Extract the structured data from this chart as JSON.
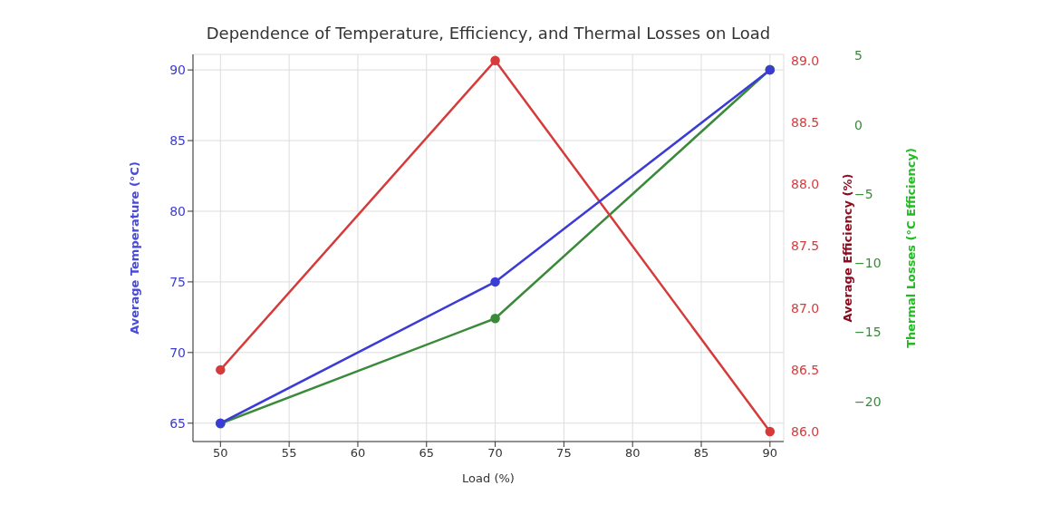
{
  "chart_data": {
    "type": "line",
    "title": "Dependence of Temperature, Efficiency, and Thermal Losses on Load",
    "xlabel": "Load (%)",
    "ylabel": "Average Temperature (°C)",
    "y2label": "Average Efficiency (%)",
    "y3label": "Thermal Losses (°C Efficiency)",
    "x": [
      50,
      70,
      90
    ],
    "series": [
      {
        "color": "#3b3bd6",
        "values": [
          65,
          75,
          90
        ]
      },
      {
        "color": "#d63b3b",
        "values": [
          86.5,
          89.0,
          86.0
        ],
        "axis": "y2"
      },
      {
        "color": "#3a8a3a",
        "values": [
          -21.6,
          -14.0,
          4.0
        ],
        "axis": "y3"
      }
    ],
    "xlim": [
      48,
      91
    ],
    "xticks": [
      50,
      55,
      60,
      65,
      70,
      75,
      80,
      85,
      90
    ],
    "ylim": [
      63.7,
      91.1
    ],
    "yticks": [
      65,
      70,
      75,
      80,
      85,
      90
    ],
    "y2lim": [
      85.92,
      89.05
    ],
    "y2ticks": [
      {
        "value": 86,
        "label": "86.0"
      },
      {
        "value": 86.5,
        "label": "86.5"
      },
      {
        "value": 87,
        "label": "87.0"
      },
      {
        "value": 87.5,
        "label": "87.5"
      },
      {
        "value": 88,
        "label": "88.0"
      },
      {
        "value": 88.5,
        "label": "88.5"
      },
      {
        "value": 89,
        "label": "89.0"
      }
    ],
    "y3lim": [
      -22.9,
      5.1
    ],
    "y3ticks": [
      {
        "value": -20,
        "label": "−20"
      },
      {
        "value": -15,
        "label": "−15"
      },
      {
        "value": -10,
        "label": "−10"
      },
      {
        "value": -5,
        "label": "−5"
      },
      0,
      5
    ],
    "grid": true,
    "marker": "circle",
    "line_style": "solid",
    "legend": false
  }
}
